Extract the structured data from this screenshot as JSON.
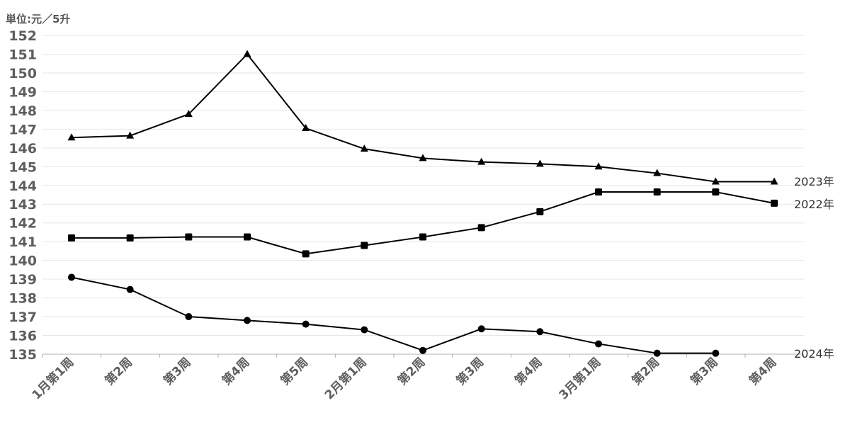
{
  "chart_data": {
    "type": "line",
    "unit_label": "単位:元／5升",
    "categories": [
      "1月第1周",
      "第2周",
      "第3周",
      "第4周",
      "第5周",
      "2月第1周",
      "第2周",
      "第3周",
      "第4周",
      "3月第1周",
      "第2周",
      "第3周",
      "第4周"
    ],
    "ylim": [
      135,
      152
    ],
    "yticks": [
      135,
      136,
      137,
      138,
      139,
      140,
      141,
      142,
      143,
      144,
      145,
      146,
      147,
      148,
      149,
      150,
      151,
      152
    ],
    "grid": true,
    "series": [
      {
        "name": "2023年",
        "marker": "triangle",
        "values": [
          146.55,
          146.65,
          147.8,
          151.0,
          147.05,
          145.95,
          145.45,
          145.25,
          145.15,
          145.0,
          144.65,
          144.2,
          144.2
        ]
      },
      {
        "name": "2022年",
        "marker": "square",
        "values": [
          141.2,
          141.2,
          141.25,
          141.25,
          140.35,
          140.8,
          141.25,
          141.75,
          142.6,
          143.65,
          143.65,
          143.65,
          143.05
        ]
      },
      {
        "name": "2024年",
        "marker": "circle",
        "values": [
          139.1,
          138.45,
          137.0,
          136.8,
          136.6,
          136.3,
          135.2,
          136.35,
          136.2,
          135.55,
          135.05,
          135.05,
          null
        ]
      }
    ],
    "colors": {
      "line": "#000000",
      "grid": "#e6e6e6",
      "tick_text": "#5e5e5e",
      "axis": "#b0b0b0"
    }
  }
}
